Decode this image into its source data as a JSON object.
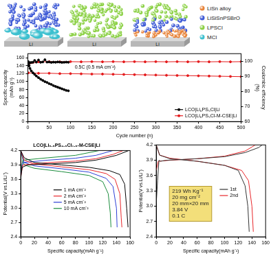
{
  "illustration": {
    "panels": [
      {
        "label": "Li"
      },
      {
        "label": "Li"
      },
      {
        "label": "Li"
      }
    ],
    "legend": [
      {
        "label": "LiSn alloy",
        "color": "#e8843a"
      },
      {
        "label": "LiSiSnPSBrO",
        "color": "#3f5bd6"
      },
      {
        "label": "LPSCl",
        "color": "#8cd146"
      },
      {
        "label": "MCl",
        "color": "#3cc0cf"
      }
    ]
  },
  "chart_data": [
    {
      "type": "line",
      "x_label": "Cycle number (n)",
      "y_label": "Specific capacity(mAh g⁻¹)",
      "y2_label": "Coulombic efficiency(%)",
      "annotations": [
        "0.5C (0.5 mA cm⁻²)"
      ],
      "xlim": [
        0,
        500
      ],
      "xticks": [
        0,
        50,
        100,
        150,
        200,
        250,
        300,
        350,
        400,
        450,
        500
      ],
      "ylim": [
        0,
        170
      ],
      "yticks": [
        0,
        20,
        40,
        60,
        80,
        100,
        120,
        140,
        160
      ],
      "y2lim": [
        60,
        105
      ],
      "y2ticks": [
        60,
        70,
        80,
        90,
        100
      ],
      "legend": "lower right",
      "marker": "circle",
      "line_style": "solid",
      "series": [
        {
          "name": "LCO|Li₆PS₅Cl|Li",
          "color": "#000000",
          "x": [
            1,
            3,
            5,
            8,
            12,
            16,
            20,
            25,
            30,
            35,
            40,
            45,
            50,
            55,
            60,
            65,
            70,
            75,
            80,
            85,
            90,
            95
          ],
          "values": [
            150,
            140,
            133,
            127,
            122,
            118,
            114,
            110,
            106,
            103,
            100,
            98,
            95,
            93,
            90,
            88,
            86,
            84,
            82,
            80,
            78,
            77
          ]
        },
        {
          "name": "LCO|Li₆PS₅Cl-M-CSE|Li",
          "color": "#e41a1c",
          "x": [
            1,
            25,
            50,
            75,
            100,
            125,
            150,
            175,
            200,
            225,
            250,
            275,
            300,
            325,
            350,
            375,
            400,
            425,
            450,
            475,
            500
          ],
          "values": [
            122,
            121,
            121,
            120,
            120,
            119.5,
            119,
            119,
            118.5,
            118,
            117.5,
            117,
            116.5,
            116,
            115.5,
            115,
            114.5,
            114,
            113.5,
            113,
            112.5
          ]
        },
        {
          "color": "#000000",
          "axis": "y2",
          "x": [
            1,
            3,
            5,
            8,
            12,
            16,
            20,
            25,
            30,
            35,
            40,
            45,
            50,
            55,
            60,
            65,
            70,
            75,
            80,
            85,
            90,
            95
          ],
          "values": [
            97,
            98.8,
            99,
            99.2,
            99.3,
            100.5,
            99.4,
            100.8,
            99.3,
            99.5,
            101,
            99.4,
            99.5,
            99.2,
            99.4,
            99.3,
            99.5,
            99.4,
            99.2,
            99.3,
            99.4,
            99.3
          ]
        },
        {
          "color": "#e41a1c",
          "axis": "y2",
          "x": [
            1,
            25,
            50,
            75,
            100,
            125,
            150,
            175,
            200,
            225,
            250,
            275,
            300,
            325,
            350,
            375,
            400,
            425,
            450,
            475,
            500
          ],
          "values": [
            98,
            99.6,
            99.7,
            99.6,
            99.7,
            99.6,
            99.7,
            99.6,
            99.7,
            99.6,
            99.7,
            99.6,
            99.7,
            99.6,
            99.7,
            99.6,
            99.7,
            99.6,
            99.7,
            99.6,
            99.7
          ]
        }
      ]
    },
    {
      "type": "line",
      "title": "LCO|Li₅.₅PS₄.₅Cl₁.₅-M-CSE|Li",
      "x_label": "Specific capacity(mAh g⁻¹)",
      "y_label": "Potential(V vs.Li/Li⁺)",
      "xlim": [
        0,
        160
      ],
      "xticks": [
        0,
        20,
        40,
        60,
        80,
        100,
        120,
        140,
        160
      ],
      "ylim": [
        2.4,
        4.2
      ],
      "yticks": [
        2.4,
        2.7,
        {
          "value": 3,
          "label": "3.0"
        },
        3.3,
        3.6,
        3.9,
        4.2
      ],
      "legend": "center",
      "line_style": "solid",
      "series": [
        {
          "name": "1 mA cm⁻²",
          "color": "#000000",
          "x": [
            0,
            2,
            10,
            40,
            80,
            110,
            140,
            158,
            158,
            0,
            5,
            20,
            60,
            100,
            130,
            145,
            152,
            155,
            157
          ],
          "values": [
            3.6,
            3.85,
            3.9,
            3.92,
            3.95,
            4.0,
            4.1,
            4.2,
            null,
            4.2,
            4.05,
            3.95,
            3.9,
            3.85,
            3.78,
            3.7,
            3.5,
            3.0,
            2.6
          ]
        },
        {
          "name": "2 mA cm⁻²",
          "color": "#e8262a",
          "x": [
            0,
            3,
            40,
            80,
            110,
            135,
            150,
            150,
            0,
            5,
            20,
            60,
            100,
            125,
            138,
            145,
            147,
            148
          ],
          "values": [
            3.65,
            3.9,
            3.95,
            3.98,
            4.03,
            4.12,
            4.2,
            null,
            4.2,
            4.0,
            3.92,
            3.86,
            3.8,
            3.72,
            3.6,
            3.3,
            2.8,
            2.6
          ]
        },
        {
          "name": "5 mA cm⁻²",
          "color": "#2d3fd6",
          "x": [
            0,
            3,
            40,
            80,
            110,
            135,
            135,
            0,
            5,
            20,
            60,
            100,
            125,
            135,
            140,
            141
          ],
          "values": [
            3.7,
            3.95,
            4.0,
            4.04,
            4.1,
            4.2,
            null,
            4.2,
            3.95,
            3.88,
            3.82,
            3.75,
            3.62,
            3.45,
            3.0,
            2.6
          ]
        },
        {
          "name": "10 mA cm⁻²",
          "color": "#1a8c3c",
          "x": [
            0,
            3,
            40,
            80,
            115,
            115,
            0,
            5,
            20,
            60,
            100,
            120,
            128,
            131,
            132
          ],
          "values": [
            3.75,
            4.0,
            4.05,
            4.1,
            4.2,
            null,
            4.2,
            3.9,
            3.83,
            3.76,
            3.68,
            3.55,
            3.3,
            2.9,
            2.6
          ]
        }
      ]
    },
    {
      "type": "line",
      "x_label": "Specific capacity(mAh g⁻¹)",
      "y_label": "Potential(V vs.Li/Li⁺)",
      "annotations": [
        "219 Wh Kg⁻¹",
        "20 mg cm⁻²",
        "20 mm×20 mm",
        "3.84 V",
        "0.1 C"
      ],
      "xlim": [
        0,
        160
      ],
      "xticks": [
        0,
        20,
        40,
        60,
        80,
        100,
        120,
        140,
        160
      ],
      "ylim": [
        2.4,
        4.2
      ],
      "yticks": [
        2.4,
        2.7,
        {
          "value": 3,
          "label": "3.0"
        },
        3.3,
        3.6,
        3.9,
        4.2
      ],
      "legend": "center right",
      "line_style": "solid",
      "series": [
        {
          "name": "1st",
          "color": "#333333",
          "x": [
            0,
            2,
            4,
            6,
            15,
            60,
            100,
            130,
            150,
            155,
            155,
            0,
            5,
            20,
            60,
            100,
            120,
            130,
            134,
            136
          ],
          "values": [
            3.05,
            3.5,
            3.9,
            3.88,
            3.9,
            3.93,
            3.97,
            4.05,
            4.15,
            4.2,
            null,
            4.2,
            4.0,
            3.93,
            3.88,
            3.8,
            3.7,
            3.4,
            3.0,
            2.5
          ]
        },
        {
          "name": "2nd",
          "color": "#e8262a",
          "x": [
            0,
            3,
            20,
            60,
            100,
            130,
            145,
            145,
            0,
            5,
            20,
            60,
            100,
            125,
            135,
            140,
            142
          ],
          "values": [
            3.7,
            3.88,
            3.9,
            3.93,
            3.98,
            4.08,
            4.2,
            null,
            4.2,
            4.0,
            3.94,
            3.88,
            3.8,
            3.7,
            3.5,
            3.0,
            2.5
          ]
        }
      ]
    }
  ]
}
